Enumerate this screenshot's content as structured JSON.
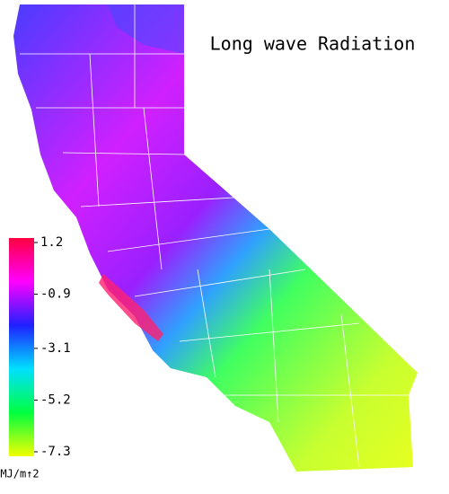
{
  "title": "Long wave Radiation",
  "colorbar": {
    "ticks": [
      1.2,
      -0.9,
      -3.1,
      -5.2,
      -7.3
    ],
    "colors": [
      "#ff0040",
      "#ff00ff",
      "#2020ff",
      "#00e0ff",
      "#00ff40",
      "#f0ff00"
    ],
    "unit": "MJ/m↑2"
  }
}
